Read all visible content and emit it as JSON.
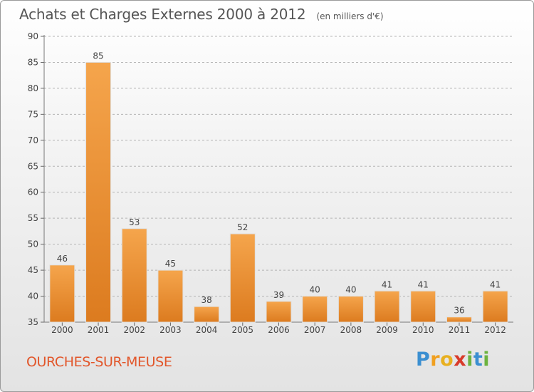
{
  "header": {
    "title": "Achats et Charges Externes 2000 à 2012",
    "unit": "(en milliers d'€)"
  },
  "footer": {
    "commune": "OURCHES-SUR-MEUSE",
    "logo_text": "Proxiti"
  },
  "colors": {
    "bar_light": "#f5a54c",
    "bar_dark": "#dc7b1f",
    "commune_text": "#e2562a",
    "grid": "#b4b4b4"
  },
  "chart_data": {
    "type": "bar",
    "title": "Achats et Charges Externes 2000 à 2012",
    "subtitle": "(en milliers d'€)",
    "categories": [
      "2000",
      "2001",
      "2002",
      "2003",
      "2004",
      "2005",
      "2006",
      "2007",
      "2008",
      "2009",
      "2010",
      "2011",
      "2012"
    ],
    "values": [
      46,
      85,
      53,
      45,
      38,
      52,
      39,
      40,
      40,
      41,
      41,
      36,
      41
    ],
    "data_labels": [
      "46",
      "85",
      "53",
      "45",
      "38",
      "52",
      "39",
      "40",
      "40",
      "41",
      "41",
      "36",
      "41"
    ],
    "ylim": [
      35,
      90
    ],
    "yticks": [
      35,
      40,
      45,
      50,
      55,
      60,
      65,
      70,
      75,
      80,
      85,
      90
    ],
    "grid": "horizontal dashed",
    "legend": "none"
  }
}
